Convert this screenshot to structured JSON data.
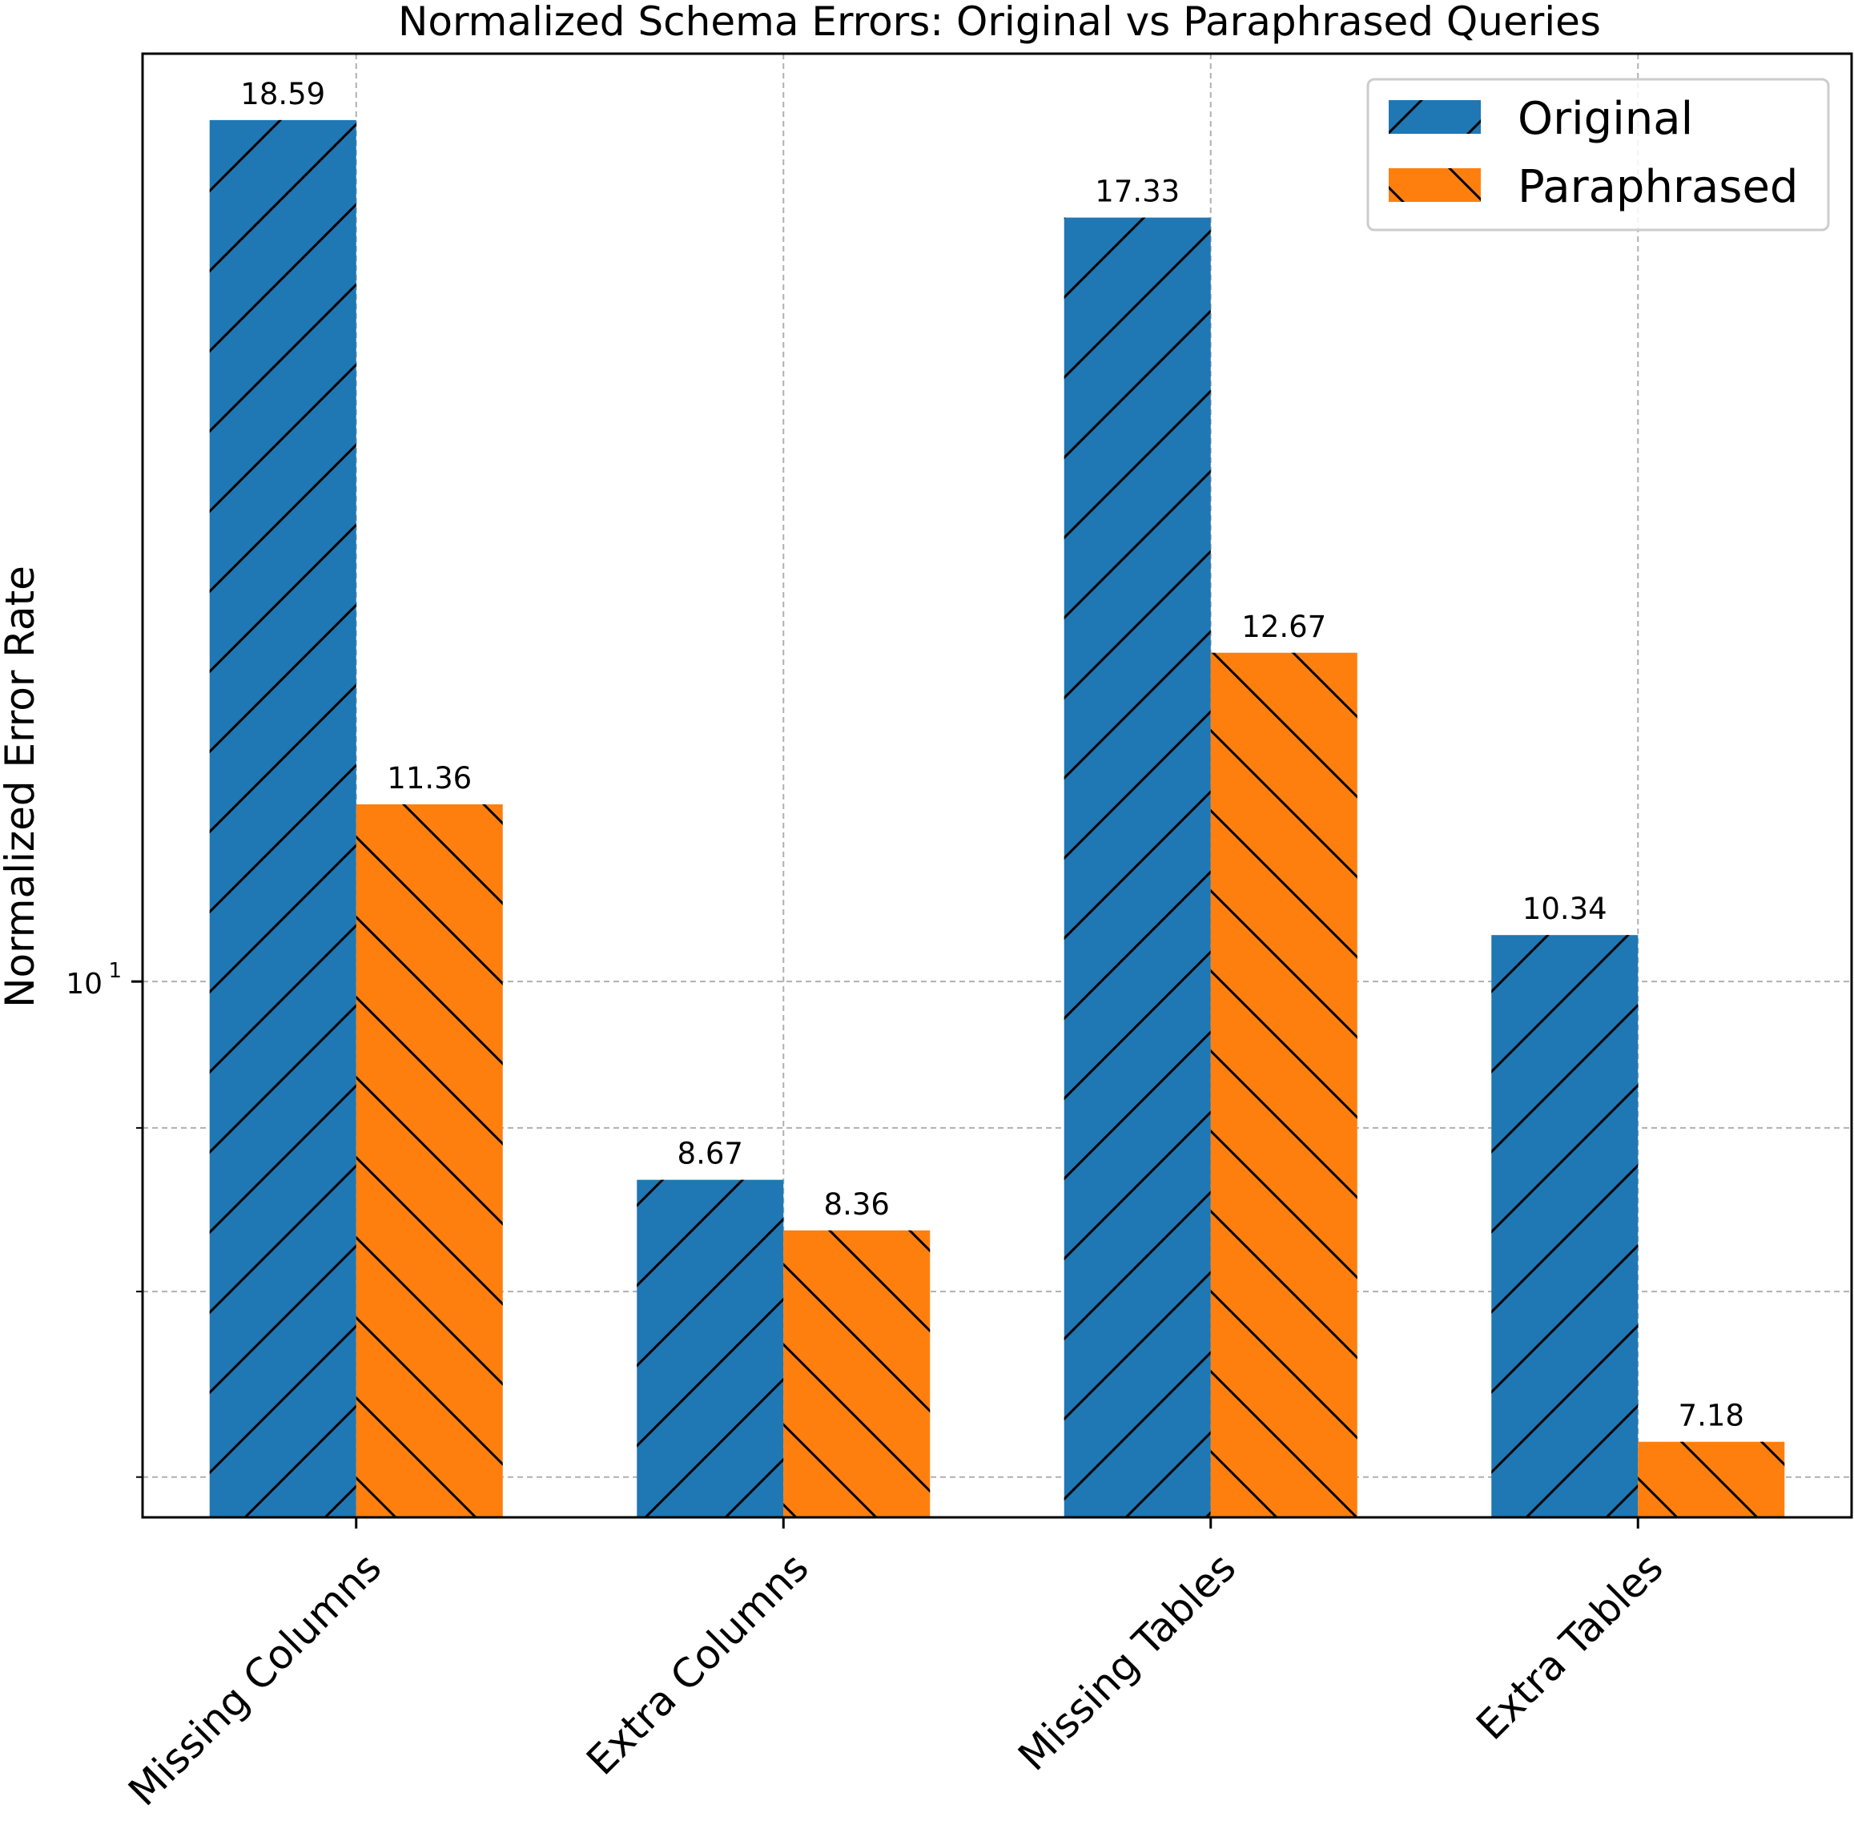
{
  "chart_data": {
    "type": "bar",
    "title": "Normalized Schema Errors: Original vs Paraphrased Queries",
    "xlabel": "",
    "ylabel": "Normalized Error Rate",
    "yscale": "log",
    "ylim": [
      6.8,
      19.5
    ],
    "yticks": [
      {
        "value": 10,
        "label": "10",
        "exponent": "1"
      }
    ],
    "minor_yticks": [
      7,
      8,
      9
    ],
    "grid": true,
    "legend_position": "top-right",
    "categories": [
      "Missing Columns",
      "Extra Columns",
      "Missing Tables",
      "Extra Tables"
    ],
    "series": [
      {
        "name": "Original",
        "values": [
          18.59,
          8.67,
          17.33,
          10.34
        ],
        "labels": [
          "18.59",
          "8.67",
          "17.33",
          "10.34"
        ],
        "color": "#1f77b4",
        "hatch": "/"
      },
      {
        "name": "Paraphrased",
        "values": [
          11.36,
          8.36,
          12.67,
          7.18
        ],
        "labels": [
          "11.36",
          "8.36",
          "12.67",
          "7.18"
        ],
        "color": "#ff7f0e",
        "hatch": "\\"
      }
    ]
  }
}
